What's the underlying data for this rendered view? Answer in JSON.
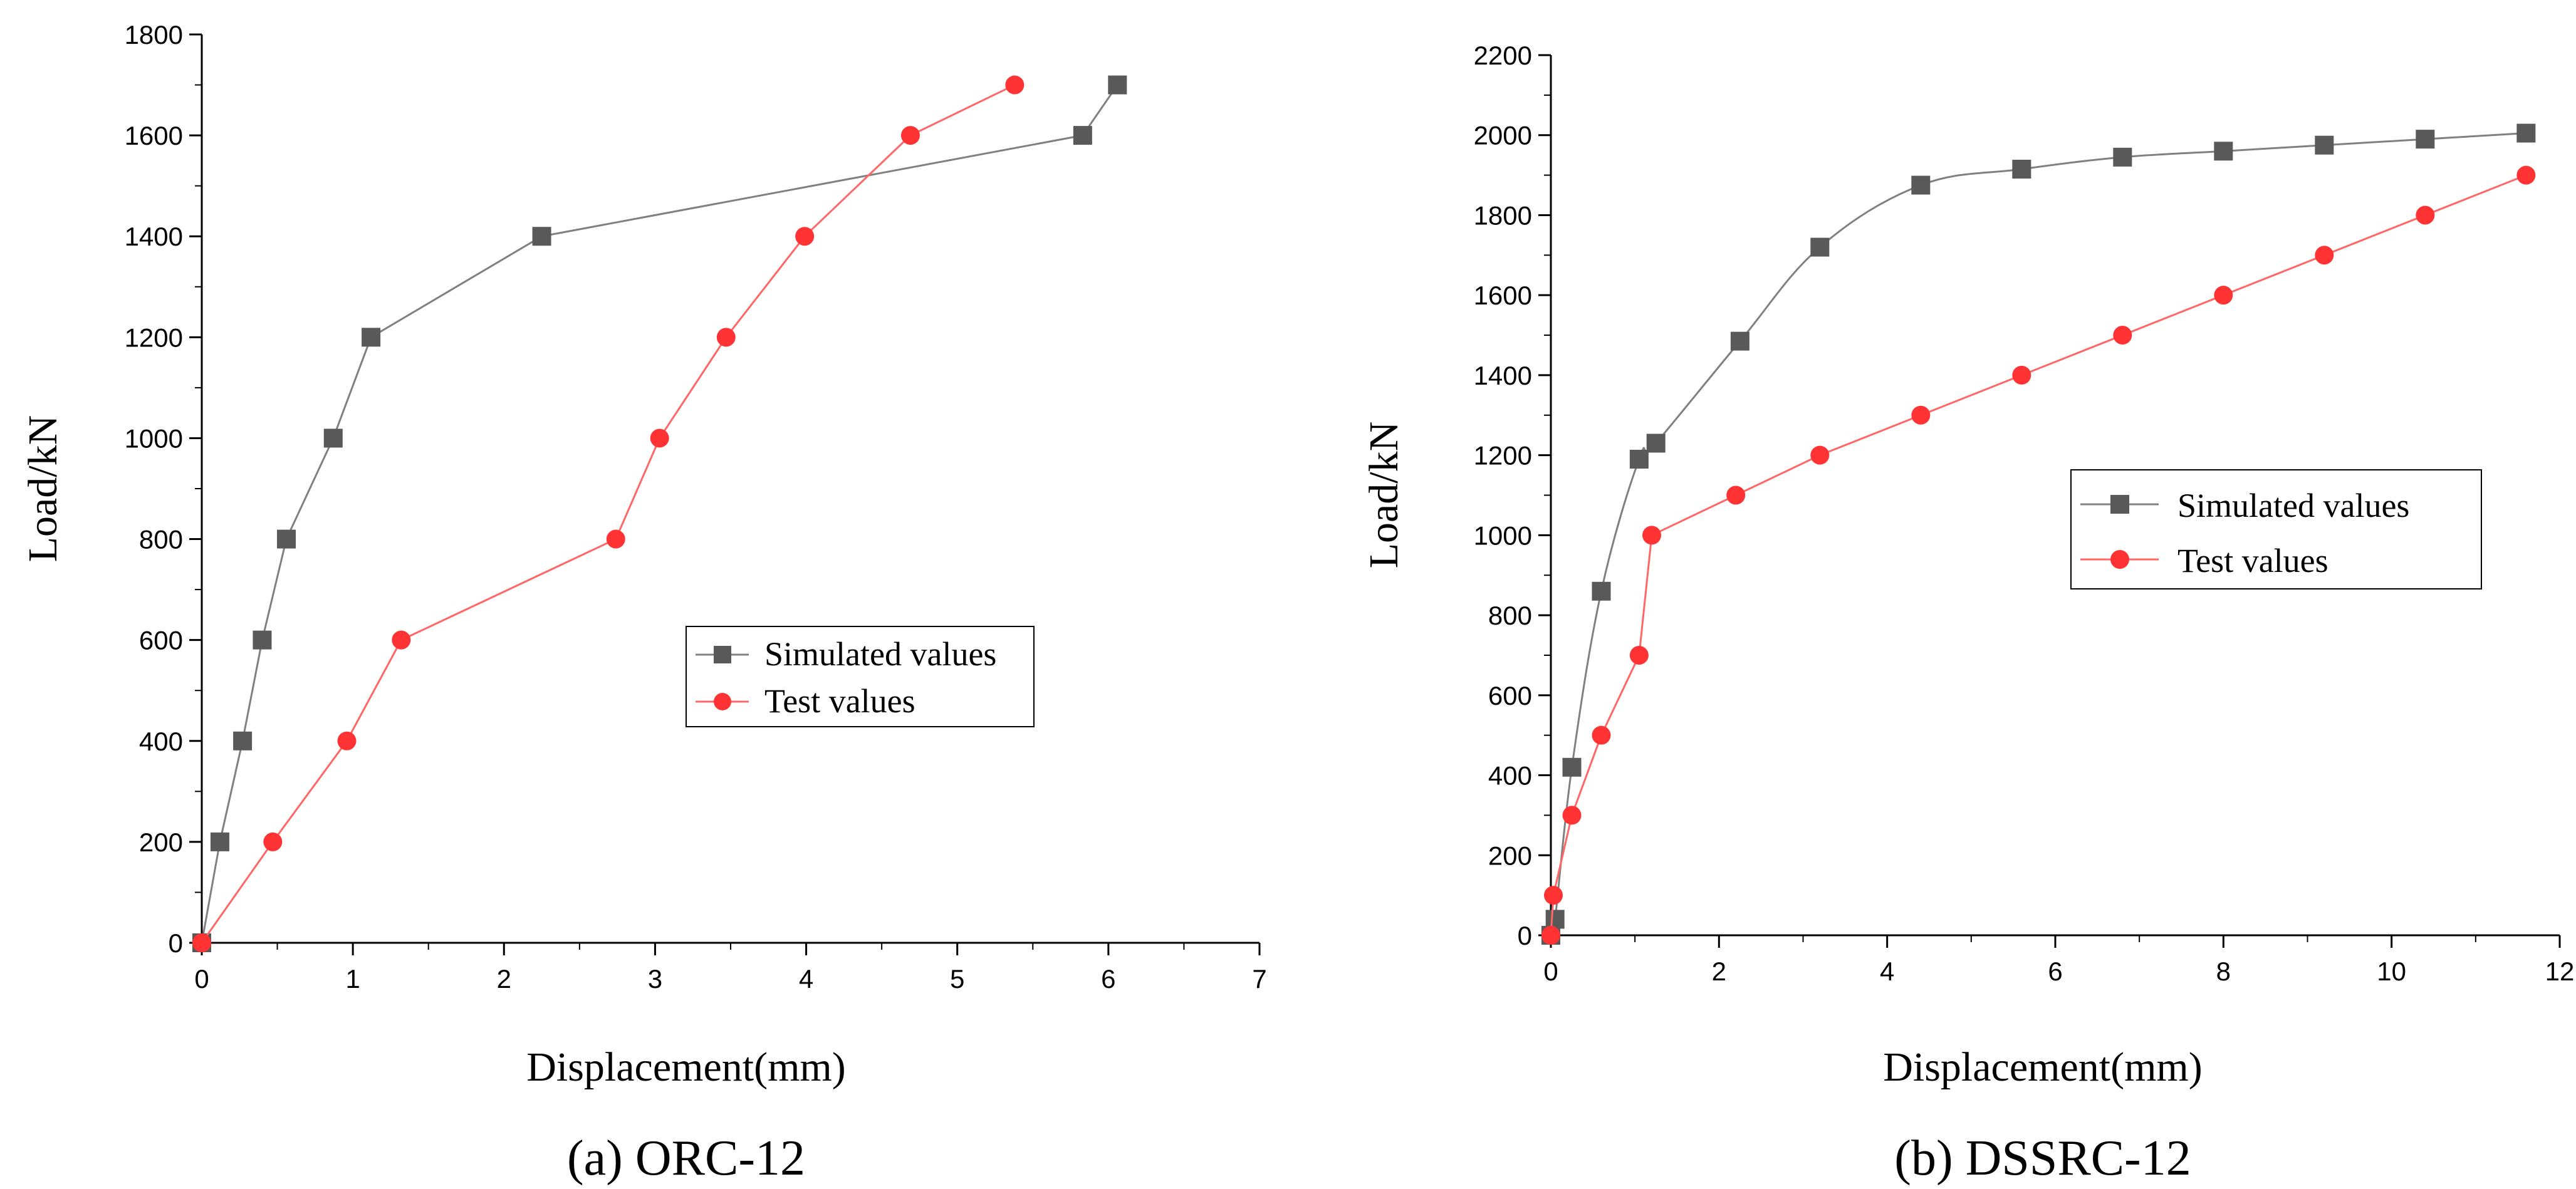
{
  "colors": {
    "simulated": "#595959",
    "test": "#ff3333",
    "simulated_line": "#808080",
    "test_line": "#ff6666"
  },
  "chart_data": [
    {
      "type": "line",
      "caption": "(a) ORC-12",
      "xlabel": "Displacement(mm)",
      "ylabel": "Load/kN",
      "xlim": [
        0,
        7
      ],
      "ylim": [
        0,
        1800
      ],
      "xticks": [
        0,
        1,
        2,
        3,
        4,
        5,
        6,
        7
      ],
      "yticks": [
        0,
        200,
        400,
        600,
        800,
        1000,
        1200,
        1400,
        1600,
        1800
      ],
      "legend_position": "center-right",
      "series": [
        {
          "name": "Simulated values",
          "marker": "square",
          "smooth": false,
          "x": [
            0,
            0.12,
            0.27,
            0.4,
            0.56,
            0.87,
            1.12,
            2.25,
            5.83,
            6.06
          ],
          "y": [
            0,
            200,
            400,
            600,
            800,
            1000,
            1200,
            1400,
            1600,
            1700
          ]
        },
        {
          "name": "Test values",
          "marker": "circle",
          "smooth": false,
          "x": [
            0,
            0.47,
            0.96,
            1.32,
            2.74,
            3.03,
            3.47,
            3.99,
            4.69,
            5.38
          ],
          "y": [
            0,
            200,
            400,
            600,
            800,
            1000,
            1200,
            1400,
            1600,
            1700
          ]
        }
      ]
    },
    {
      "type": "line",
      "caption": "(b) DSSRC-12",
      "xlabel": "Displacement(mm)",
      "ylabel": "Load/kN",
      "xlim": [
        0,
        12
      ],
      "ylim": [
        0,
        2200
      ],
      "xticks": [
        0,
        2,
        4,
        6,
        8,
        10,
        12
      ],
      "yticks": [
        0,
        200,
        400,
        600,
        800,
        1000,
        1200,
        1400,
        1600,
        1800,
        2000,
        2200
      ],
      "legend_position": "center-right",
      "series": [
        {
          "name": "Simulated values",
          "marker": "square",
          "smooth": true,
          "x": [
            0,
            0.05,
            0.25,
            0.6,
            1.05,
            1.25,
            2.25,
            3.2,
            4.4,
            5.6,
            6.8,
            8.0,
            9.2,
            10.4,
            11.6
          ],
          "y": [
            0,
            40,
            420,
            860,
            1190,
            1230,
            1485,
            1720,
            1875,
            1915,
            1945,
            1960,
            1975,
            1990,
            2005
          ]
        },
        {
          "name": "Test values",
          "marker": "circle",
          "smooth": false,
          "x": [
            0,
            0.03,
            0.25,
            0.6,
            1.05,
            1.2,
            2.2,
            3.2,
            4.4,
            5.6,
            6.8,
            8.0,
            9.2,
            10.4,
            11.6
          ],
          "y": [
            0,
            100,
            300,
            500,
            700,
            1000,
            1100,
            1200,
            1300,
            1400,
            1500,
            1600,
            1700,
            1800,
            1900
          ]
        }
      ]
    }
  ]
}
